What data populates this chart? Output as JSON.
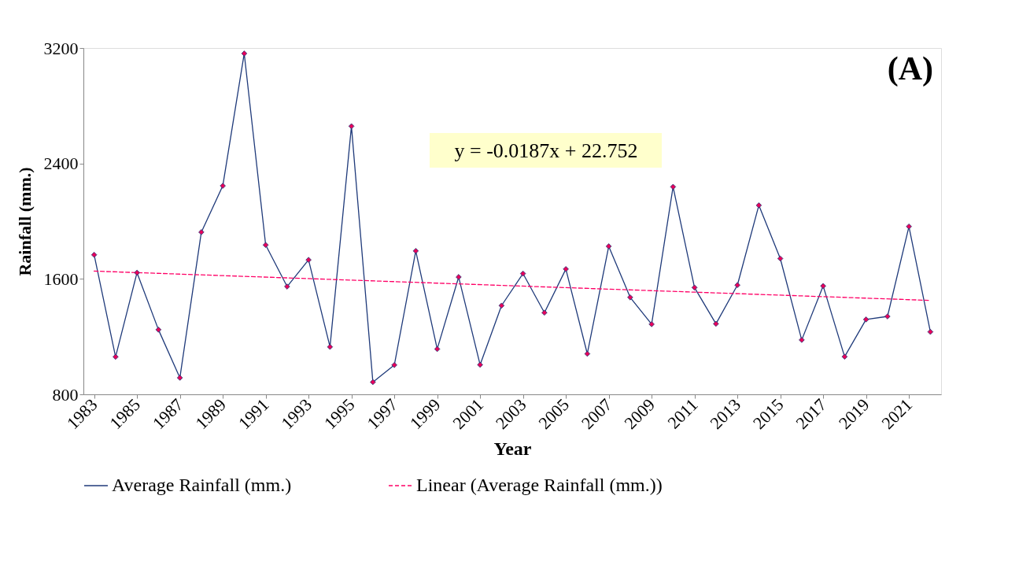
{
  "chart_data": {
    "type": "line",
    "xlabel": "Year",
    "ylabel": "Rainfall (mm.)",
    "x": [
      1983,
      1984,
      1985,
      1986,
      1987,
      1988,
      1989,
      1990,
      1991,
      1992,
      1993,
      1994,
      1995,
      1996,
      1997,
      1998,
      1999,
      2000,
      2001,
      2002,
      2003,
      2004,
      2005,
      2006,
      2007,
      2008,
      2009,
      2010,
      2011,
      2012,
      2013,
      2014,
      2015,
      2016,
      2017,
      2018,
      2019,
      2020,
      2021,
      2022
    ],
    "series": [
      {
        "name": "Average Rainfall (mm.)",
        "color": "#1f3a7a",
        "line_style": "solid",
        "marker": "diamond",
        "values": [
          1767,
          1060,
          1643,
          1248,
          915,
          1924,
          2245,
          3162,
          1835,
          1547,
          1732,
          1129,
          2658,
          885,
          1003,
          1794,
          1114,
          1613,
          1005,
          1415,
          1637,
          1366,
          1668,
          1081,
          1826,
          1472,
          1286,
          2238,
          1540,
          1289,
          1557,
          2110,
          1741,
          1177,
          1551,
          1061,
          1319,
          1340,
          1963,
          1233
        ]
      },
      {
        "name": "Linear (Average Rainfall (mm.))",
        "color": "#ff0066",
        "type": "line",
        "line_style": "dashed",
        "marker": "none",
        "x": [
          1983,
          2022
        ],
        "values": [
          1654,
          1451
        ]
      }
    ],
    "xlim": [
      1982.5,
      2022.5
    ],
    "xticks": [
      1983,
      1985,
      1987,
      1989,
      1991,
      1993,
      1995,
      1997,
      1999,
      2001,
      2003,
      2005,
      2007,
      2009,
      2011,
      2013,
      2015,
      2017,
      2019,
      2021
    ],
    "ylim": [
      800,
      3200
    ],
    "yticks": [
      800,
      1600,
      2400,
      3200
    ],
    "grid": false,
    "legend": "bottom",
    "annotations": [
      "y = -0.0187x + 22.752",
      "(A)"
    ]
  }
}
